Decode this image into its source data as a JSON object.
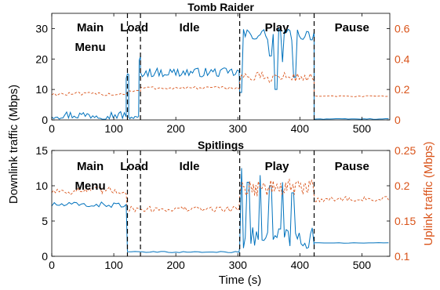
{
  "colors": {
    "downlink": "#0072bd",
    "uplink": "#d95319",
    "axes": "#000000"
  },
  "shared_labels": {
    "left_axis": "Downlink traffic (Mbps)",
    "right_axis": "Uplink traffic (Mbps)",
    "x_axis": "Time (s)"
  },
  "chart_data": [
    {
      "type": "line",
      "title": "Tomb Raider",
      "xlim": [
        0,
        545
      ],
      "x_ticks": [
        "0",
        "100",
        "200",
        "300",
        "400",
        "500"
      ],
      "ylim_left": [
        0,
        35
      ],
      "y_ticks_left": [
        "0",
        "10",
        "20",
        "30"
      ],
      "ylim_right": [
        0,
        0.7
      ],
      "y_ticks_right": [
        "0",
        "0.2",
        "0.4",
        "0.6"
      ],
      "phase_boundaries": [
        122,
        143,
        303,
        423
      ],
      "phases": [
        {
          "label_lines": [
            "Main",
            "Menu"
          ],
          "x": 62
        },
        {
          "label_lines": [
            "Load"
          ],
          "x": 133
        },
        {
          "label_lines": [
            "Idle"
          ],
          "x": 222
        },
        {
          "label_lines": [
            "Play"
          ],
          "x": 363
        },
        {
          "label_lines": [
            "Pause"
          ],
          "x": 484
        }
      ],
      "series": [
        {
          "axis": "left",
          "style": "solid",
          "segments": [
            {
              "x_start": 0,
              "x_end": 120,
              "mean": 1.6,
              "amp": 1.4,
              "period": 3
            },
            {
              "x_start": 120,
              "x_end": 124,
              "mean": 14.0,
              "amp": 1.5,
              "period": 2
            },
            {
              "x_start": 124,
              "x_end": 141,
              "mean": 0.8,
              "amp": 0.5,
              "period": 2
            },
            {
              "x_start": 141,
              "x_end": 143,
              "mean": 20.0,
              "amp": 1.0,
              "period": 2
            },
            {
              "x_start": 143,
              "x_end": 303,
              "mean": 15.6,
              "amp": 1.5,
              "period": 3
            },
            {
              "x_start": 303,
              "x_end": 423,
              "mean": 28.0,
              "amp": 2.0,
              "period": 3,
              "dips": [
                [
                  305,
                  9
                ],
                [
                  352,
                  21
                ],
                [
                  362,
                  10
                ],
                [
                  372,
                  19
                ],
                [
                  392,
                  14
                ]
              ]
            },
            {
              "x_start": 423,
              "x_end": 545,
              "mean": 0.3,
              "amp": 0.1,
              "period": 5
            }
          ]
        },
        {
          "axis": "right",
          "style": "dashed",
          "segments": [
            {
              "x_start": 0,
              "x_end": 122,
              "mean": 0.17,
              "amp": 0.012,
              "period": 4
            },
            {
              "x_start": 122,
              "x_end": 143,
              "mean": 0.19,
              "amp": 0.01,
              "period": 3
            },
            {
              "x_start": 143,
              "x_end": 303,
              "mean": 0.21,
              "amp": 0.01,
              "period": 4
            },
            {
              "x_start": 303,
              "x_end": 423,
              "mean": 0.28,
              "amp": 0.035,
              "period": 3
            },
            {
              "x_start": 423,
              "x_end": 545,
              "mean": 0.155,
              "amp": 0.004,
              "period": 6
            }
          ]
        }
      ]
    },
    {
      "type": "line",
      "title": "Spitlings",
      "xlim": [
        0,
        545
      ],
      "x_ticks": [
        "0",
        "100",
        "200",
        "300",
        "400",
        "500"
      ],
      "ylim_left": [
        0,
        15
      ],
      "y_ticks_left": [
        "0",
        "5",
        "10",
        "15"
      ],
      "ylim_right": [
        0.1,
        0.25
      ],
      "y_ticks_right": [
        "0.1",
        "0.15",
        "0.2",
        "0.25"
      ],
      "phase_boundaries": [
        122,
        143,
        303,
        423
      ],
      "phases": [
        {
          "label_lines": [
            "Main",
            "Menu"
          ],
          "x": 62
        },
        {
          "label_lines": [
            "Load"
          ],
          "x": 133
        },
        {
          "label_lines": [
            "Idle"
          ],
          "x": 222
        },
        {
          "label_lines": [
            "Play"
          ],
          "x": 363
        },
        {
          "label_lines": [
            "Pause"
          ],
          "x": 484
        }
      ],
      "series": [
        {
          "axis": "left",
          "style": "solid",
          "segments": [
            {
              "x_start": 0,
              "x_end": 122,
              "mean": 7.3,
              "amp": 0.4,
              "period": 4
            },
            {
              "x_start": 122,
              "x_end": 303,
              "mean": 0.6,
              "amp": 0.08,
              "period": 6
            },
            {
              "x_start": 303,
              "x_end": 423,
              "mean": 2.6,
              "amp": 1.5,
              "period": 3,
              "peaks": [
                [
                  306,
                  12.5
                ],
                [
                  316,
                  10.5
                ],
                [
                  336,
                  11.5
                ],
                [
                  352,
                  10.0
                ],
                [
                  372,
                  10.5
                ],
                [
                  388,
                  9.0
                ]
              ]
            },
            {
              "x_start": 423,
              "x_end": 545,
              "mean": 1.9,
              "amp": 0.03,
              "period": 8
            }
          ]
        },
        {
          "axis": "right",
          "style": "dashed",
          "segments": [
            {
              "x_start": 0,
              "x_end": 122,
              "mean": 0.193,
              "amp": 0.006,
              "period": 3
            },
            {
              "x_start": 122,
              "x_end": 303,
              "mean": 0.167,
              "amp": 0.004,
              "period": 3
            },
            {
              "x_start": 303,
              "x_end": 423,
              "mean": 0.197,
              "amp": 0.012,
              "period": 2
            },
            {
              "x_start": 423,
              "x_end": 545,
              "mean": 0.181,
              "amp": 0.004,
              "period": 3
            }
          ]
        }
      ]
    }
  ]
}
